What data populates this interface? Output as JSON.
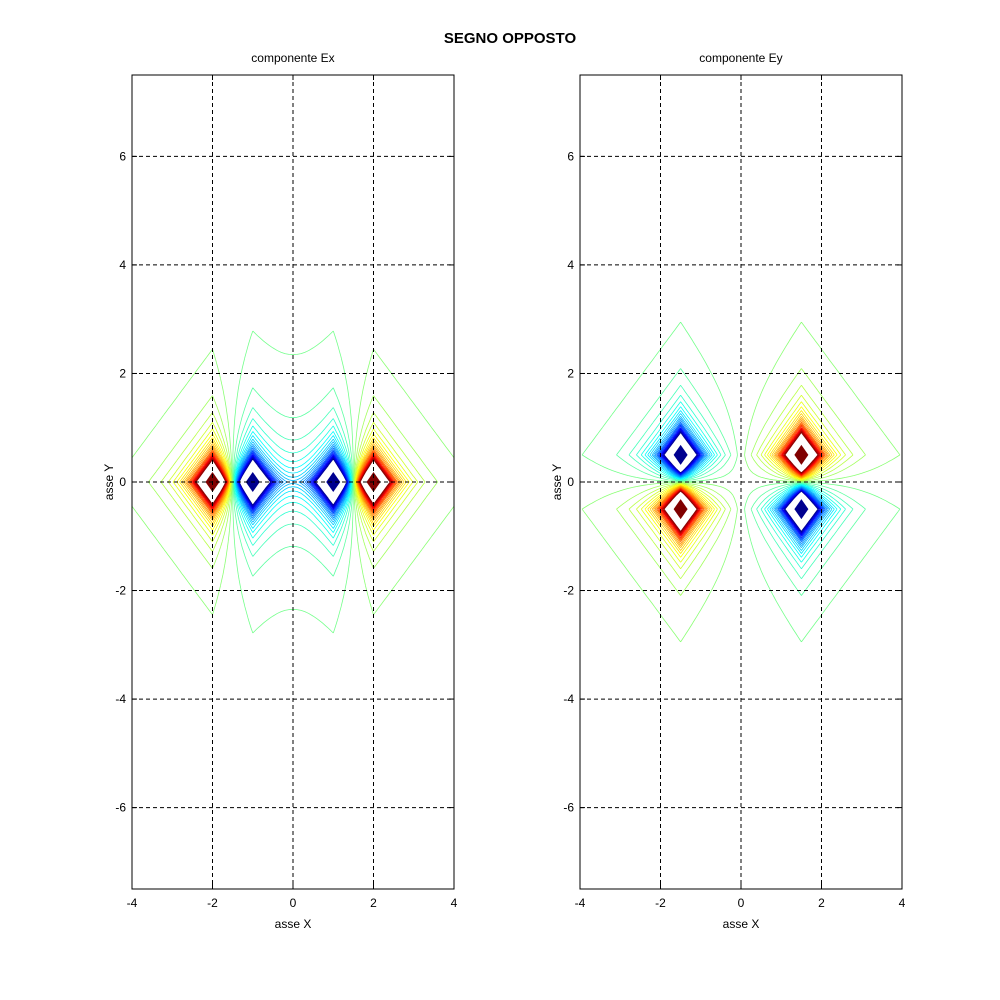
{
  "figure": {
    "title": "SEGNO OPPOSTO"
  },
  "chart_data": [
    {
      "type": "contour",
      "title": "componente Ex",
      "xlabel": "asse X",
      "ylabel": "asse Y",
      "xlim": [
        -4,
        4
      ],
      "ylim": [
        -7.5,
        7.5
      ],
      "xticks": [
        -4,
        -2,
        0,
        2,
        4
      ],
      "yticks": [
        -6,
        -4,
        -2,
        0,
        2,
        4,
        6
      ],
      "grid": true,
      "grid_style": "dashed",
      "colormap": "jet",
      "field_component": "Ex",
      "extrema": [
        {
          "x": -2,
          "y": 0,
          "sign": "positive"
        },
        {
          "x": -1,
          "y": 0,
          "sign": "negative"
        },
        {
          "x": 1,
          "y": 0,
          "sign": "negative"
        },
        {
          "x": 2,
          "y": 0,
          "sign": "positive"
        }
      ]
    },
    {
      "type": "contour",
      "title": "componente Ey",
      "xlabel": "asse X",
      "ylabel": "asse Y",
      "xlim": [
        -4,
        4
      ],
      "ylim": [
        -7.5,
        7.5
      ],
      "xticks": [
        -4,
        -2,
        0,
        2,
        4
      ],
      "yticks": [
        -6,
        -4,
        -2,
        0,
        2,
        4,
        6
      ],
      "grid": true,
      "grid_style": "dashed",
      "colormap": "jet",
      "field_component": "Ey",
      "extrema": [
        {
          "x": -1.5,
          "y": 0.5,
          "sign": "negative"
        },
        {
          "x": -1.5,
          "y": -0.5,
          "sign": "positive"
        },
        {
          "x": 1.5,
          "y": 0.5,
          "sign": "positive"
        },
        {
          "x": 1.5,
          "y": -0.5,
          "sign": "negative"
        }
      ]
    }
  ],
  "colors": {
    "jet_low": "#00008f",
    "jet_mid": "#80ff80",
    "jet_high": "#800000",
    "axis": "#000000",
    "background": "#ffffff"
  }
}
